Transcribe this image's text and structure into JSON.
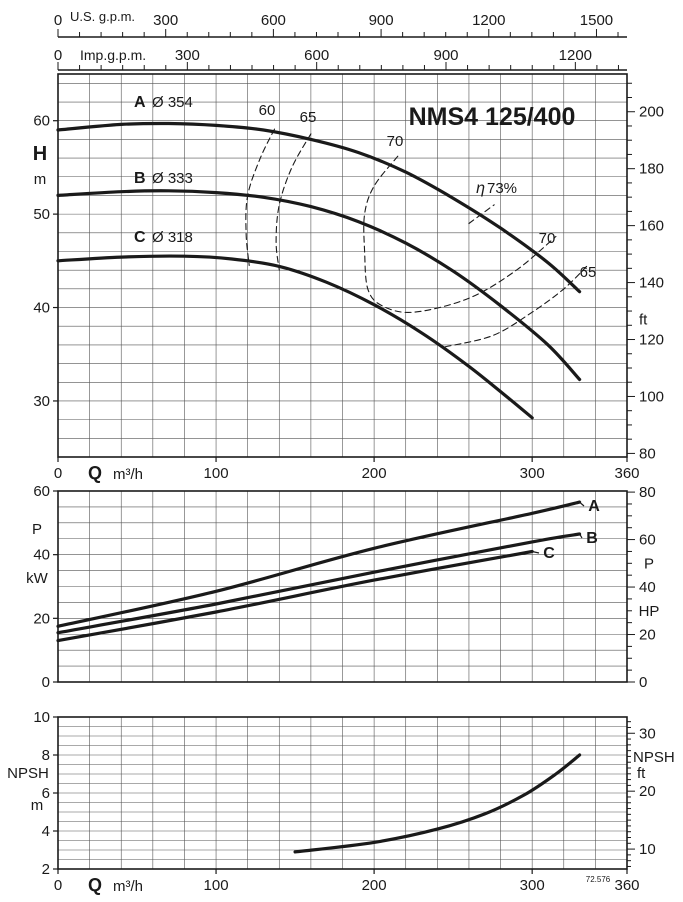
{
  "chart_data": [
    {
      "type": "line",
      "title": "NMS4 125/400",
      "xlabel": "Q",
      "xunit": "m³/h",
      "ylabel": "H",
      "yunit": "m",
      "y2unit": "ft",
      "xlim": [
        0,
        360
      ],
      "ylim": [
        24,
        65
      ],
      "y2lim": [
        80,
        213
      ],
      "x_ticks": [
        0,
        100,
        200,
        300,
        360
      ],
      "y_ticks": [
        30,
        40,
        50,
        60
      ],
      "y2_ticks": [
        80,
        100,
        120,
        140,
        160,
        180,
        200
      ],
      "top_axis_usgpm": {
        "label": "U.S. g.p.m.",
        "ticks": [
          0,
          300,
          600,
          900,
          1200,
          1500
        ]
      },
      "top_axis_impgpm": {
        "label": "Imp.g.p.m.",
        "ticks": [
          0,
          300,
          600,
          900,
          1200
        ]
      },
      "grid": true,
      "series": [
        {
          "name": "A",
          "diameter_label": "Ø 354",
          "x": [
            0,
            40,
            70,
            100,
            130,
            160,
            190,
            220,
            250,
            280,
            310,
            330
          ],
          "y": [
            59.0,
            59.6,
            59.7,
            59.5,
            59.0,
            58.0,
            56.6,
            54.5,
            51.7,
            48.5,
            44.8,
            41.7
          ]
        },
        {
          "name": "B",
          "diameter_label": "Ø 333",
          "x": [
            0,
            40,
            70,
            100,
            130,
            160,
            190,
            220,
            250,
            280,
            310,
            330
          ],
          "y": [
            52.0,
            52.4,
            52.5,
            52.3,
            51.8,
            50.8,
            49.2,
            46.9,
            43.9,
            40.2,
            36.0,
            32.3
          ]
        },
        {
          "name": "C",
          "diameter_label": "Ø 318",
          "x": [
            0,
            40,
            80,
            110,
            140,
            170,
            200,
            230,
            260,
            285,
            300
          ],
          "y": [
            45.0,
            45.4,
            45.5,
            45.2,
            44.4,
            42.7,
            40.3,
            37.3,
            33.7,
            30.3,
            28.2
          ]
        }
      ],
      "efficiency_label_prefix": "η",
      "efficiency_curves": [
        {
          "label": "60",
          "x": [
            137,
            128,
            120,
            119,
            121
          ],
          "y": [
            59.1,
            56.0,
            52.0,
            48.0,
            44.5
          ]
        },
        {
          "label": "65",
          "x": [
            160,
            148,
            140,
            138,
            140
          ],
          "y": [
            58.6,
            55.0,
            51.0,
            47.0,
            44.0
          ]
        },
        {
          "label": "70",
          "x": [
            215,
            200,
            194,
            194,
            196,
            205,
            225,
            260,
            290,
            315
          ],
          "y": [
            56.2,
            53.0,
            50.0,
            46.0,
            42.0,
            40.2,
            39.5,
            41.0,
            44.0,
            47.6
          ]
        },
        {
          "label": "73%",
          "x": [
            260,
            268,
            276
          ],
          "y": [
            49.0,
            50.0,
            51.0
          ]
        },
        {
          "label": "65",
          "x": [
            245,
            275,
            300,
            320,
            335
          ],
          "y": [
            35.8,
            37.0,
            39.5,
            42.0,
            44.5
          ]
        }
      ]
    },
    {
      "type": "line",
      "ylabel": "P",
      "yunit": "kW",
      "y2label": "P",
      "y2unit": "HP",
      "xlim": [
        0,
        360
      ],
      "ylim": [
        0,
        60
      ],
      "y2lim": [
        0,
        80.5
      ],
      "y_ticks": [
        0,
        20,
        40,
        60
      ],
      "y2_ticks": [
        0,
        20,
        40,
        60,
        80
      ],
      "grid": true,
      "series": [
        {
          "name": "A",
          "x": [
            0,
            100,
            200,
            300,
            330
          ],
          "y": [
            17.5,
            28.5,
            42.0,
            53.0,
            56.5
          ]
        },
        {
          "name": "B",
          "x": [
            0,
            100,
            200,
            300,
            330
          ],
          "y": [
            15.5,
            24.5,
            34.5,
            44.0,
            46.5
          ]
        },
        {
          "name": "C",
          "x": [
            0,
            100,
            200,
            300
          ],
          "y": [
            13.0,
            22.0,
            32.0,
            41.0
          ]
        }
      ]
    },
    {
      "type": "line",
      "ylabel": "NPSH",
      "yunit": "m",
      "y2label": "NPSH",
      "y2unit": "ft",
      "xlabel": "Q",
      "xunit": "m³/h",
      "xlim": [
        0,
        360
      ],
      "ylim": [
        2,
        10
      ],
      "y2lim": [
        6.56,
        32.8
      ],
      "x_ticks": [
        0,
        100,
        200,
        300,
        360
      ],
      "y_ticks": [
        2,
        4,
        6,
        8,
        10
      ],
      "y2_ticks": [
        10,
        20,
        30
      ],
      "grid": true,
      "series": [
        {
          "x": [
            150,
            200,
            240,
            270,
            295,
            315,
            330
          ],
          "y": [
            2.9,
            3.4,
            4.1,
            4.9,
            5.9,
            7.0,
            8.0
          ]
        }
      ],
      "footnote": "72.576"
    }
  ]
}
